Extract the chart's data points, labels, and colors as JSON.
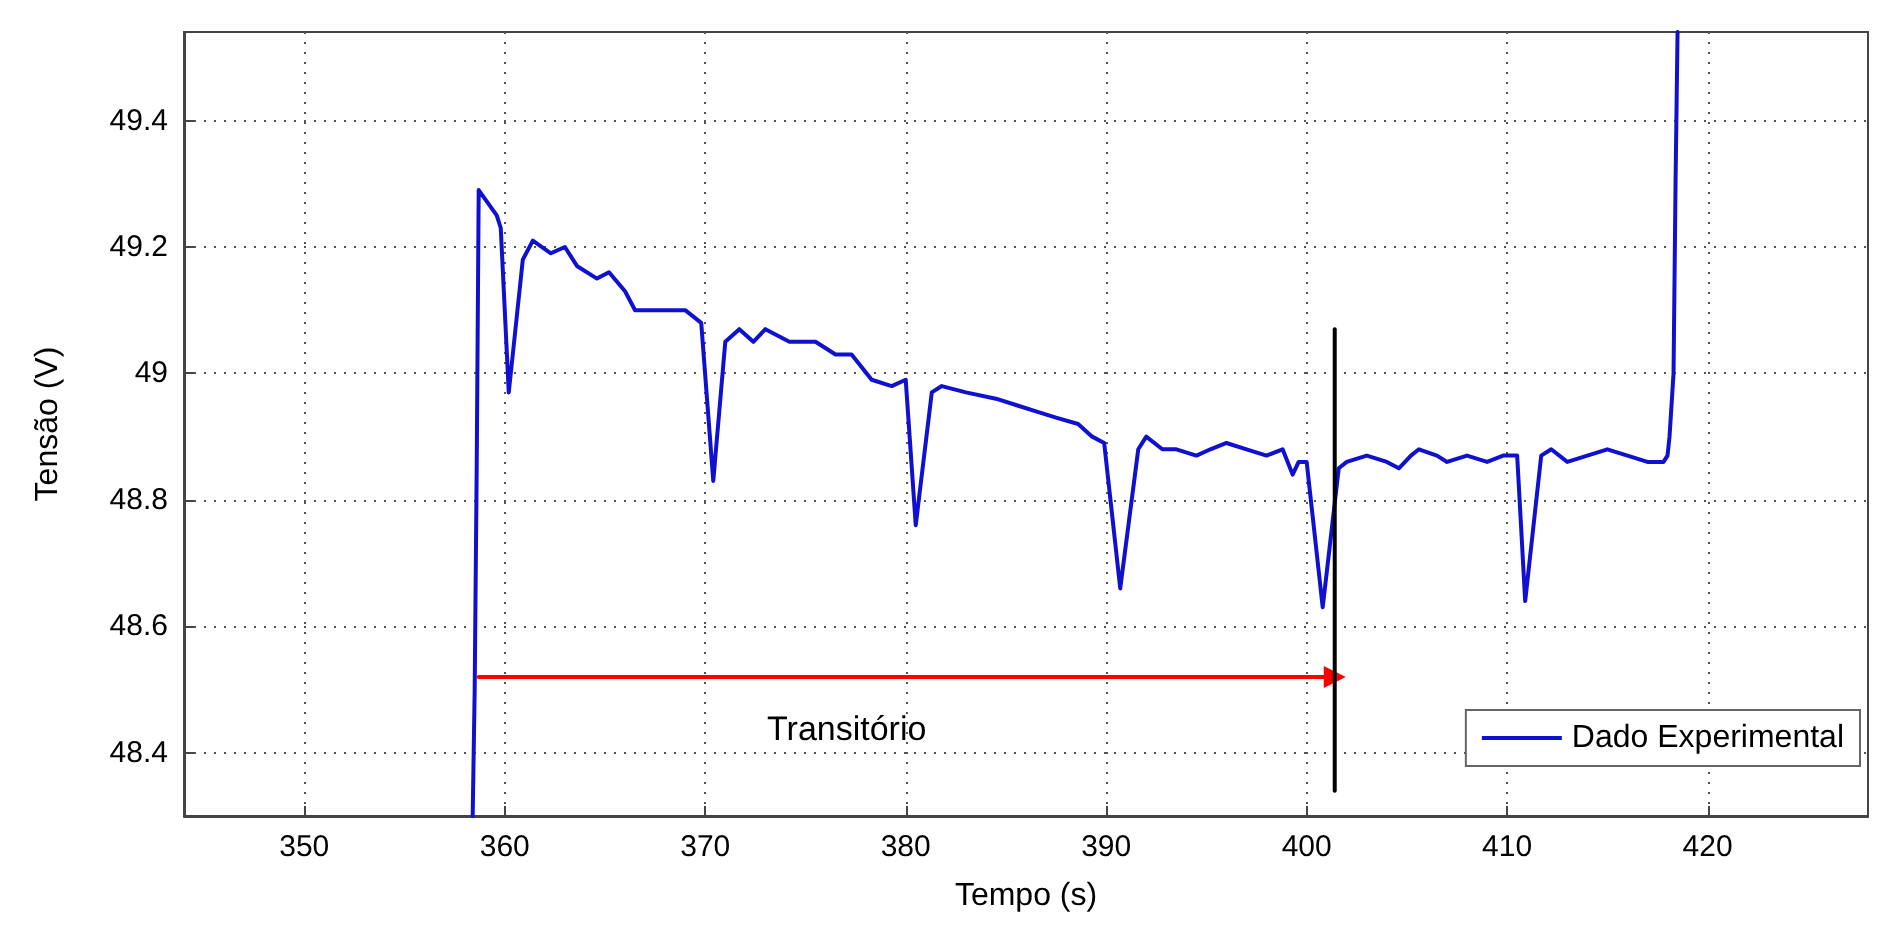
{
  "chart_data": {
    "type": "line",
    "xlabel": "Tempo (s)",
    "ylabel": "Tensão (V)",
    "xlim": [
      344,
      428
    ],
    "xticks": [
      350,
      360,
      370,
      380,
      390,
      400,
      410,
      420
    ],
    "ylim": [
      48.3,
      49.54
    ],
    "yticks": [
      48.4,
      48.6,
      48.8,
      49,
      49.2,
      49.4
    ],
    "grid": true,
    "legend": "bottom right",
    "marker": "none",
    "line_style": "solid",
    "series": [
      {
        "name": "Dado Experimental",
        "color": "#1010d0",
        "x": [
          358.4,
          358.5,
          358.6,
          358.7,
          359.6,
          359.8,
          360.2,
          360.9,
          361.4,
          362.3,
          363.0,
          363.6,
          364.6,
          365.2,
          366.0,
          366.5,
          368.0,
          369.0,
          369.8,
          370.4,
          371.0,
          371.7,
          372.4,
          373.0,
          374.2,
          375.5,
          376.5,
          377.3,
          378.3,
          379.3,
          380.0,
          380.5,
          381.3,
          381.8,
          383.0,
          384.5,
          385.5,
          386.5,
          387.5,
          388.6,
          389.3,
          389.9,
          390.7,
          391.6,
          392.0,
          392.8,
          393.5,
          394.5,
          395.2,
          396.0,
          397.0,
          398.0,
          398.8,
          399.3,
          399.6,
          400.0,
          400.8,
          401.6,
          402.0,
          403.0,
          404.0,
          404.6,
          405.2,
          405.6,
          406.5,
          407.0,
          408.0,
          409.0,
          409.8,
          410.5,
          410.9,
          411.7,
          412.2,
          413.0,
          414.0,
          415.0,
          416.0,
          417.0,
          417.8,
          418.0,
          418.1,
          418.3,
          418.4,
          418.5
        ],
        "values": [
          48.3,
          48.5,
          48.85,
          49.29,
          49.25,
          49.23,
          48.97,
          49.18,
          49.21,
          49.19,
          49.2,
          49.17,
          49.15,
          49.16,
          49.13,
          49.1,
          49.1,
          49.1,
          49.08,
          48.83,
          49.05,
          49.07,
          49.05,
          49.07,
          49.05,
          49.05,
          49.03,
          49.03,
          48.99,
          48.98,
          48.99,
          48.76,
          48.97,
          48.98,
          48.97,
          48.96,
          48.95,
          48.94,
          48.93,
          48.92,
          48.9,
          48.89,
          48.66,
          48.88,
          48.9,
          48.88,
          48.88,
          48.87,
          48.88,
          48.89,
          48.88,
          48.87,
          48.88,
          48.84,
          48.86,
          48.86,
          48.63,
          48.85,
          48.86,
          48.87,
          48.86,
          48.85,
          48.87,
          48.88,
          48.87,
          48.86,
          48.87,
          48.86,
          48.87,
          48.87,
          48.64,
          48.87,
          48.88,
          48.86,
          48.87,
          48.88,
          48.87,
          48.86,
          48.86,
          48.87,
          48.9,
          49.0,
          49.3,
          49.54
        ]
      },
      {
        "name": "Transitório",
        "color": "#ff0000",
        "marker": "triangle",
        "x": [
          358.7,
          401.4
        ],
        "values": [
          48.52,
          48.52
        ]
      },
      {
        "color": "#000000",
        "x": [
          401.4,
          401.4
        ],
        "values": [
          48.34,
          49.07
        ]
      }
    ]
  }
}
